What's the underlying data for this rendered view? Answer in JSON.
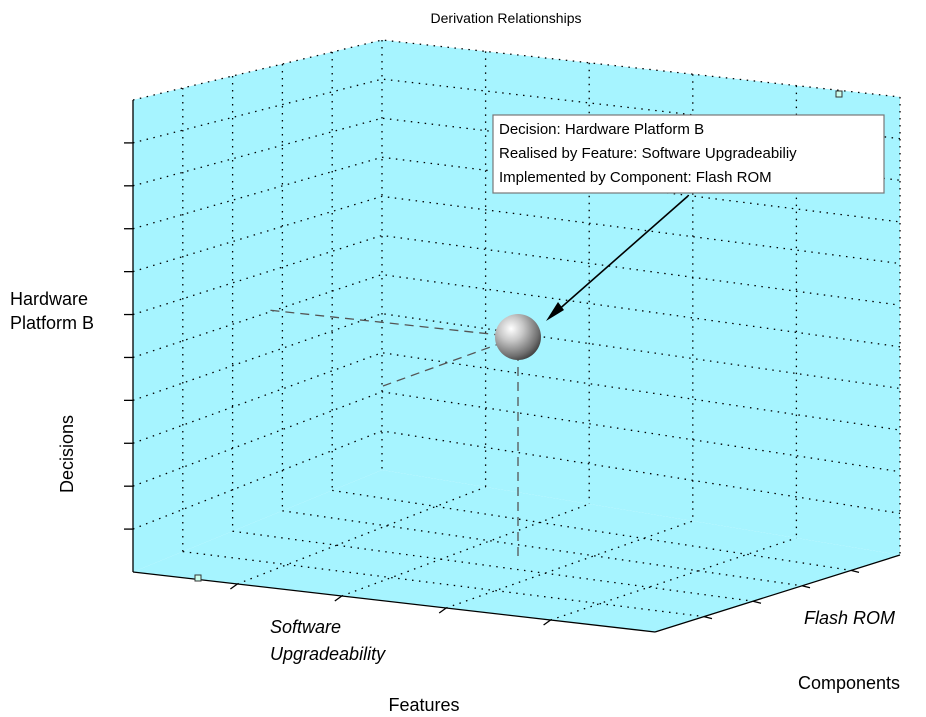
{
  "chart_data": {
    "type": "scatter",
    "title": "Derivation Relationships",
    "xlabel": "Features",
    "ylabel": "Components",
    "zlabel": "Decisions",
    "x_tick_labels": [
      "Software Upgradeability"
    ],
    "y_tick_labels": [
      "Flash ROM"
    ],
    "z_tick_labels": [
      "Hardware Platform B"
    ],
    "grid": true,
    "points": [
      {
        "x": "Software Upgradeability",
        "y": "Flash ROM",
        "z": "Hardware Platform B",
        "marker": "sphere"
      }
    ],
    "annotation": [
      "Decision: Hardware Platform B",
      "Realised by Feature: Software Upgradeabiliy",
      "Implemented by Component: Flash ROM"
    ],
    "colors": {
      "pane": "#a6f4ff",
      "sphere": "#9a9a9a",
      "annotation_box": "#ffffff"
    }
  }
}
